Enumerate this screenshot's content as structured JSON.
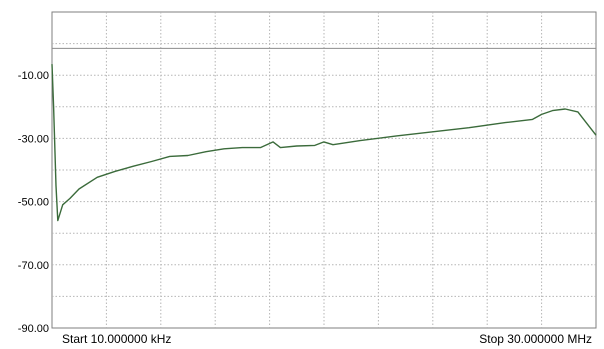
{
  "chart_data": {
    "type": "line",
    "title": "",
    "xlabel": "",
    "ylabel": "",
    "start_label": "Start 10.000000 kHz",
    "stop_label": "Stop 30.000000 MHz",
    "x_range_mhz": [
      0.01,
      30.0
    ],
    "ylim": [
      -90,
      10
    ],
    "y_ticks": [
      {
        "value": -10,
        "label": "-10.00"
      },
      {
        "value": -30,
        "label": "-30.00"
      },
      {
        "value": -50,
        "label": "-50.00"
      },
      {
        "value": -70,
        "label": "-70.00"
      },
      {
        "value": -90,
        "label": "-90.00"
      }
    ],
    "reference_line": -1.5,
    "grid": true,
    "series": [
      {
        "color": "#3b6b3b",
        "x": [
          0.01,
          0.1,
          0.23,
          0.33,
          0.6,
          1.0,
          1.5,
          2.5,
          3.5,
          4.5,
          5.5,
          6.5,
          7.5,
          8.5,
          9.5,
          10.5,
          11.5,
          12.2,
          12.6,
          13.5,
          14.5,
          15.0,
          15.5,
          17.0,
          19.0,
          21.0,
          23.0,
          25.0,
          26.5,
          27.0,
          27.6,
          28.3,
          29.0,
          30.0
        ],
        "y": [
          -6.5,
          -20,
          -45,
          -56,
          -51,
          -49,
          -46,
          -42.3,
          -40.4,
          -38.8,
          -37.3,
          -35.7,
          -35.4,
          -34.2,
          -33.3,
          -32.9,
          -32.9,
          -31.1,
          -32.9,
          -32.4,
          -32.2,
          -31.1,
          -32.0,
          -30.7,
          -29.2,
          -27.9,
          -26.6,
          -25.0,
          -24.0,
          -22.4,
          -21.2,
          -20.7,
          -21.6,
          -29.0
        ]
      }
    ]
  }
}
